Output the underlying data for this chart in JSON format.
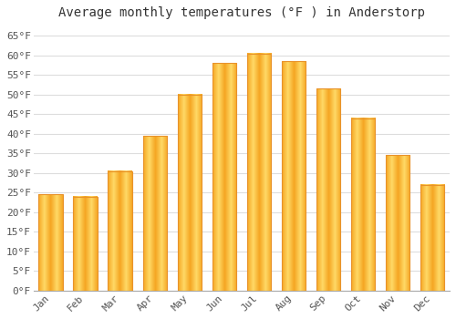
{
  "title": "Average monthly temperatures (°F ) in Anderstorp",
  "months": [
    "Jan",
    "Feb",
    "Mar",
    "Apr",
    "May",
    "Jun",
    "Jul",
    "Aug",
    "Sep",
    "Oct",
    "Nov",
    "Dec"
  ],
  "values": [
    24.5,
    24.0,
    30.5,
    39.5,
    50.0,
    58.0,
    60.5,
    58.5,
    51.5,
    44.0,
    34.5,
    27.0
  ],
  "bar_color_center": "#FFD966",
  "bar_color_edge": "#F5A623",
  "background_color": "#FFFFFF",
  "grid_color": "#DDDDDD",
  "text_color": "#555555",
  "ylim": [
    0,
    68
  ],
  "yticks": [
    0,
    5,
    10,
    15,
    20,
    25,
    30,
    35,
    40,
    45,
    50,
    55,
    60,
    65
  ],
  "ytick_labels": [
    "0°F",
    "5°F",
    "10°F",
    "15°F",
    "20°F",
    "25°F",
    "30°F",
    "35°F",
    "40°F",
    "45°F",
    "50°F",
    "55°F",
    "60°F",
    "65°F"
  ],
  "title_fontsize": 10,
  "tick_fontsize": 8,
  "font_family": "monospace",
  "bar_width": 0.7
}
